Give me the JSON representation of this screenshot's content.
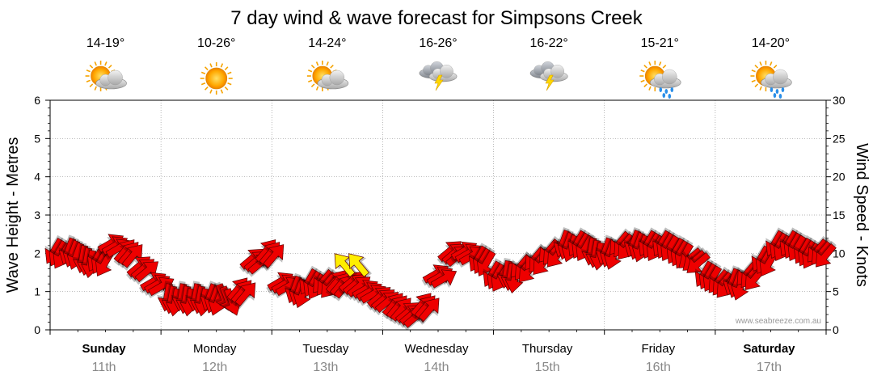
{
  "chart_data": {
    "type": "line",
    "title": "7 day wind & wave forecast for Simpsons Creek",
    "ylabel_left": "Wave Height - Metres",
    "ylabel_right": "Wind Speed - Knots",
    "ylim_left": [
      0,
      6
    ],
    "ylim_right": [
      0,
      30
    ],
    "yticks_left": [
      "0",
      "1",
      "2",
      "3",
      "4",
      "5",
      "6"
    ],
    "yticks_right": [
      "0",
      "5",
      "10",
      "15",
      "20",
      "25",
      "30"
    ],
    "grid": true,
    "days": [
      {
        "name": "Sunday",
        "date": "11th",
        "bold": true,
        "temp": "14-19°",
        "weather": "partly-cloudy"
      },
      {
        "name": "Monday",
        "date": "12th",
        "bold": false,
        "temp": "10-26°",
        "weather": "sunny"
      },
      {
        "name": "Tuesday",
        "date": "13th",
        "bold": false,
        "temp": "14-24°",
        "weather": "partly-cloudy"
      },
      {
        "name": "Wednesday",
        "date": "14th",
        "bold": false,
        "temp": "16-26°",
        "weather": "storm"
      },
      {
        "name": "Thursday",
        "date": "15th",
        "bold": false,
        "temp": "16-22°",
        "weather": "storm"
      },
      {
        "name": "Friday",
        "date": "16th",
        "bold": false,
        "temp": "15-21°",
        "weather": "partly-cloudy-rain"
      },
      {
        "name": "Saturday",
        "date": "17th",
        "bold": true,
        "temp": "14-20°",
        "weather": "partly-cloudy-rain"
      }
    ],
    "wind_series": {
      "name": "Wind speed (knots) and direction",
      "hours_step": 3,
      "speed": [
        10,
        10,
        9,
        9,
        11,
        10,
        8,
        6,
        4,
        4,
        4,
        4,
        4,
        5,
        9,
        10,
        6,
        5,
        6,
        6,
        6,
        6,
        5,
        4,
        3,
        2,
        3,
        7,
        10,
        10,
        9,
        7,
        7,
        8,
        9,
        10,
        11,
        11,
        10,
        10,
        11,
        11,
        11,
        11,
        10,
        9,
        7,
        6,
        6,
        7,
        9,
        11,
        11,
        10,
        10
      ],
      "direction_deg": [
        210,
        200,
        190,
        210,
        60,
        40,
        50,
        60,
        190,
        190,
        190,
        200,
        160,
        40,
        50,
        40,
        60,
        200,
        210,
        220,
        40,
        50,
        60,
        50,
        40,
        50,
        40,
        60,
        50,
        60,
        210,
        210,
        190,
        220,
        220,
        220,
        200,
        210,
        190,
        200,
        220,
        200,
        210,
        210,
        210,
        230,
        210,
        220,
        200,
        220,
        210,
        210,
        210,
        210,
        220
      ],
      "strong_direction_flags": [
        20,
        21
      ],
      "color": "#ee0000",
      "highlight_color": "#ffee00"
    }
  },
  "watermark": "www.seabreeze.com.au"
}
